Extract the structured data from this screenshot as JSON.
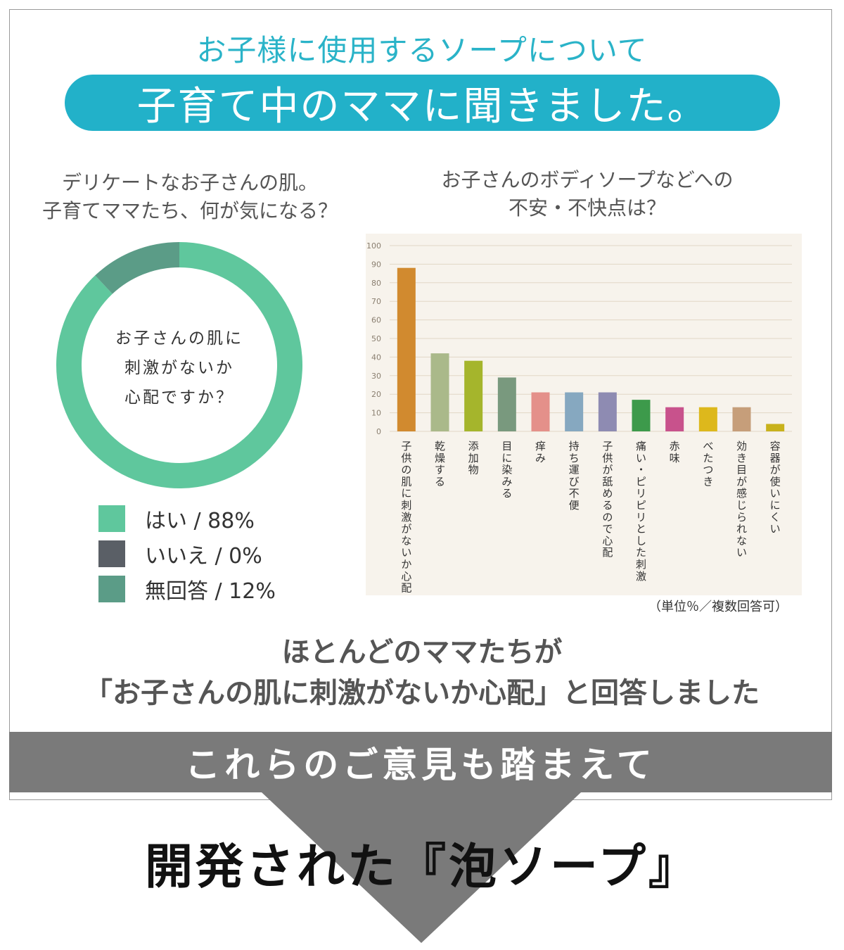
{
  "header": {
    "subtitle": "お子様に使用するソープについて",
    "title": "子育て中のママに聞きました。"
  },
  "donut": {
    "question_line1": "デリケートなお子さんの肌。",
    "question_line2": "子育てママたち、何が気になる？",
    "center_line1": "お子さんの肌に",
    "center_line2": "刺激がないか",
    "center_line3": "心配ですか？"
  },
  "bar": {
    "question_line1": "お子さんのボディソープなどへの",
    "question_line2": "不安・不快点は？",
    "unit_note": "（単位％／複数回答可）"
  },
  "conclusion": {
    "line1": "ほとんどのママたちが",
    "line2": "「お子さんの肌に刺激がないか心配」と回答しました"
  },
  "band_text": "これらのご意見も踏まえて",
  "final_text": "開発された『泡ソープ』",
  "chart_data": [
    {
      "type": "pie",
      "categories": [
        "はい",
        "いいえ",
        "無回答"
      ],
      "values": [
        88,
        0,
        12
      ],
      "value_labels": [
        "88%",
        "0%",
        "12%"
      ],
      "colors": [
        "#5fc79d",
        "#5a5f66",
        "#5b9c87"
      ],
      "legend_labels": [
        "はい / 88%",
        "いいえ / 0%",
        "無回答 / 12%"
      ],
      "legend": "bottom"
    },
    {
      "type": "bar",
      "categories": [
        "子供の肌に刺激がないか心配",
        "乾燥する",
        "添加物",
        "目に染みる",
        "痒み",
        "持ち運び不便",
        "子供が舐めるので心配",
        "痛い・ピリピリとした刺激",
        "赤味",
        "べたつき",
        "効き目が感じられない",
        "容器が使いにくい"
      ],
      "values": [
        88,
        42,
        38,
        29,
        21,
        21,
        21,
        17,
        13,
        13,
        13,
        4
      ],
      "colors": [
        "#d18a2f",
        "#aab98a",
        "#a5b52c",
        "#79997e",
        "#e4908a",
        "#86a8c0",
        "#8e8bb2",
        "#3d9a4b",
        "#c8528c",
        "#ddb81c",
        "#c69e7a",
        "#c8b21c"
      ],
      "ylim": [
        0,
        100
      ],
      "yticks": [
        0,
        10,
        20,
        30,
        40,
        50,
        60,
        70,
        80,
        90,
        100
      ],
      "grid": true
    }
  ]
}
